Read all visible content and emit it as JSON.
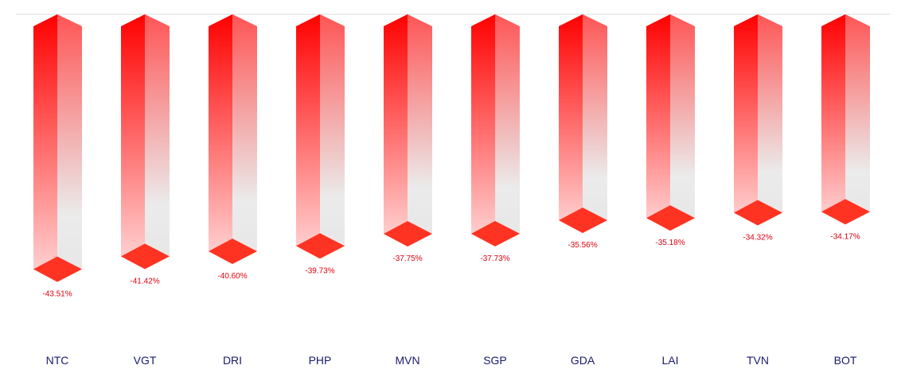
{
  "chart_data": {
    "type": "bar",
    "orientation": "vertical-inverted",
    "categories": [
      "NTC",
      "VGT",
      "DRI",
      "PHP",
      "MVN",
      "SGP",
      "GDA",
      "LAI",
      "TVN",
      "BOT"
    ],
    "values": [
      -43.51,
      -41.42,
      -40.6,
      -39.73,
      -37.75,
      -37.73,
      -35.56,
      -35.18,
      -34.32,
      -34.17
    ],
    "value_labels": [
      "-43.51%",
      "-41.42%",
      "-40.60%",
      "-39.73%",
      "-37.75%",
      "-37.73%",
      "-35.56%",
      "-35.18%",
      "-34.32%",
      "-34.17%"
    ],
    "title": "",
    "xlabel": "",
    "ylabel": "",
    "grid": false,
    "legend": "none",
    "colors": {
      "bar_top": "#ff0000",
      "bar_bottom": "#ffd9d9",
      "side_top": "#ff5555",
      "side_bottom": "#ebebeb",
      "cap": "#ff3322",
      "value_label": "#e0000f",
      "category_label": "#1a1a6e",
      "axis_line": "#d9d9d9"
    }
  }
}
